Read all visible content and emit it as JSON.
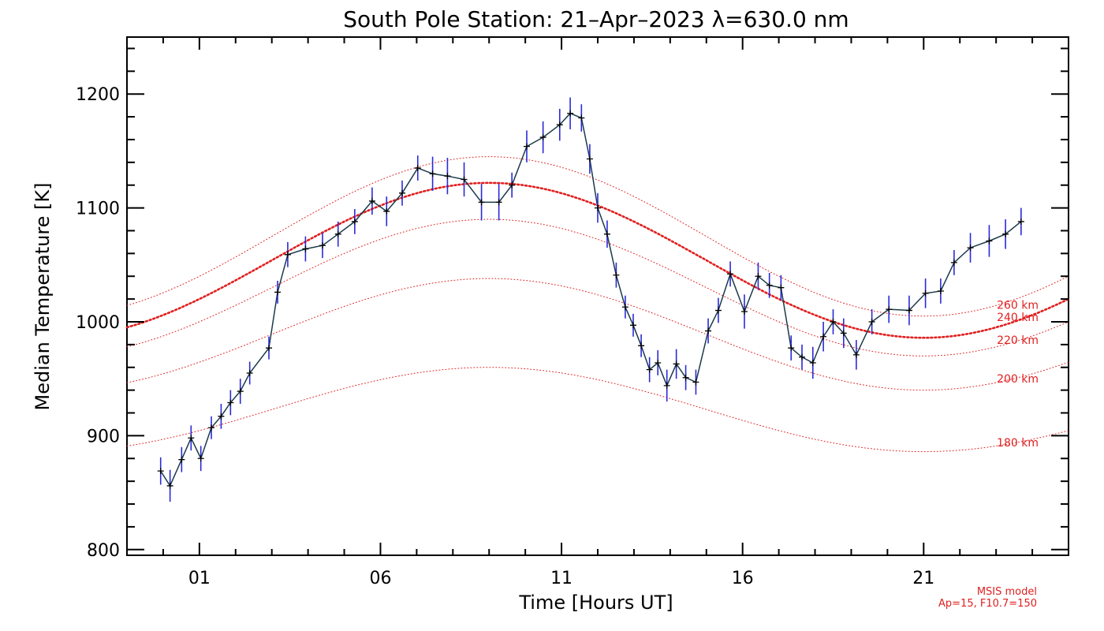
{
  "chart_data": {
    "type": "line",
    "title": "South Pole Station: 21–Apr–2023 λ=630.0 nm",
    "xlabel": "Time [Hours UT]",
    "ylabel": "Median Temperature [K]",
    "xlim": [
      -1.0,
      25.0
    ],
    "ylim": [
      795,
      1250
    ],
    "xticks": [
      1,
      6,
      11,
      16,
      21
    ],
    "xtick_labels": [
      "01",
      "06",
      "11",
      "16",
      "21"
    ],
    "yticks": [
      800,
      900,
      1000,
      1100,
      1200
    ],
    "ytick_labels": [
      "800",
      "900",
      "1000",
      "1100",
      "1200"
    ],
    "grid": false,
    "colors": {
      "observed_line": "#1a3a4a",
      "markers": "#000000",
      "error_bars": "#2a2ad8",
      "model": "#e02020"
    },
    "observed": {
      "x": [
        -0.07,
        0.19,
        0.51,
        0.77,
        1.04,
        1.33,
        1.6,
        1.86,
        2.13,
        2.39,
        2.92,
        3.16,
        3.44,
        3.93,
        4.4,
        4.83,
        5.29,
        5.77,
        6.17,
        6.6,
        7.03,
        7.44,
        7.85,
        8.31,
        8.79,
        9.27,
        9.63,
        10.04,
        10.49,
        10.95,
        11.24,
        11.55,
        11.78,
        12.0,
        12.26,
        12.51,
        12.76,
        12.98,
        13.2,
        13.43,
        13.66,
        13.91,
        14.17,
        14.43,
        14.71,
        15.05,
        15.33,
        15.66,
        16.05,
        16.43,
        16.74,
        17.06,
        17.34,
        17.64,
        17.94,
        18.23,
        18.5,
        18.79,
        19.14,
        19.57,
        20.04,
        20.6,
        21.05,
        21.47,
        21.84,
        22.29,
        22.81,
        23.26,
        23.69
      ],
      "y": [
        869,
        856,
        879,
        898,
        880,
        907,
        917,
        929,
        939,
        955,
        977,
        1026,
        1059,
        1064,
        1067,
        1077,
        1088,
        1106,
        1097,
        1113,
        1135,
        1130,
        1128,
        1125,
        1105,
        1105,
        1120,
        1154,
        1162,
        1173,
        1183,
        1179,
        1143,
        1100,
        1077,
        1041,
        1013,
        997,
        979,
        958,
        964,
        944,
        963,
        951,
        947,
        992,
        1010,
        1042,
        1009,
        1040,
        1032,
        1030,
        977,
        969,
        964,
        987,
        1000,
        990,
        971,
        1000,
        1011,
        1010,
        1025,
        1027,
        1052,
        1065,
        1071,
        1077,
        1088
      ],
      "errors": [
        12,
        14,
        11,
        11,
        11,
        10,
        11,
        11,
        11,
        10,
        10,
        10,
        11,
        11,
        11,
        11,
        11,
        12,
        13,
        11,
        11,
        15,
        16,
        15,
        16,
        16,
        11,
        14,
        14,
        14,
        14,
        12,
        13,
        13,
        12,
        11,
        10,
        10,
        10,
        11,
        11,
        14,
        13,
        11,
        11,
        11,
        11,
        11,
        15,
        12,
        11,
        11,
        11,
        11,
        14,
        13,
        11,
        13,
        13,
        11,
        12,
        13,
        13,
        11,
        11,
        13,
        14,
        13,
        12
      ]
    },
    "model_curves": [
      {
        "label": "260 km",
        "mean": 1075,
        "amp": 70,
        "phase_hour": 9.0,
        "bold": false
      },
      {
        "label": "240 km",
        "mean": 1054,
        "amp": 68,
        "phase_hour": 9.0,
        "bold": true
      },
      {
        "label": "220 km",
        "mean": 1030,
        "amp": 60,
        "phase_hour": 9.0,
        "bold": false
      },
      {
        "label": "200 km",
        "mean": 989,
        "amp": 49,
        "phase_hour": 9.0,
        "bold": false
      },
      {
        "label": "180 km",
        "mean": 923,
        "amp": 37,
        "phase_hour": 9.0,
        "bold": false
      }
    ],
    "model_label_y": [
      1015,
      1004,
      984,
      950,
      894
    ],
    "note_lines": [
      "MSIS model",
      "Ap=15, F10.7=150"
    ]
  }
}
